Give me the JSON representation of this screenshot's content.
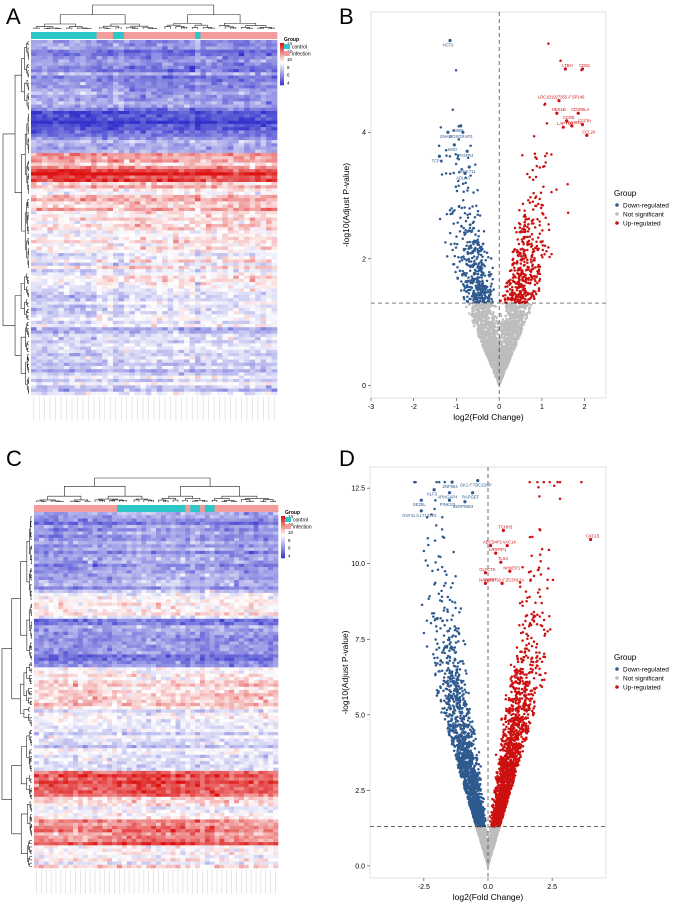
{
  "panels": {
    "a": "A",
    "b": "B",
    "c": "C",
    "d": "D"
  },
  "colors": {
    "control": "#2ec7c7",
    "infection": "#f49b9b",
    "down": "#2f5a8f",
    "ns": "#bdbdbd",
    "up": "#cc1111",
    "heat_low": "#3333cc",
    "heat_mid": "#ffffff",
    "heat_high": "#dd1111"
  },
  "chart_data": [
    {
      "type": "heatmap",
      "id": "A",
      "legend_title": "Group",
      "groups": [
        "control",
        "infection"
      ],
      "color_scale": {
        "min": 4,
        "max": 14,
        "ticks": [
          14,
          12,
          10,
          8,
          6,
          4
        ]
      },
      "column_groups": [
        "control",
        "control",
        "control",
        "control",
        "control",
        "control",
        "control",
        "control",
        "control",
        "control",
        "control",
        "control",
        "infection",
        "infection",
        "infection",
        "control",
        "control",
        "infection",
        "infection",
        "infection",
        "infection",
        "infection",
        "infection",
        "infection",
        "infection",
        "infection",
        "infection",
        "infection",
        "infection",
        "infection",
        "control",
        "infection",
        "infection",
        "infection",
        "infection",
        "infection",
        "infection",
        "infection",
        "infection",
        "infection",
        "infection",
        "infection",
        "infection",
        "infection",
        "infection"
      ]
    },
    {
      "type": "scatter",
      "id": "B",
      "xlabel": "log2(Fold Change)",
      "ylabel": "-log10(Adjust P-value)",
      "xlim": [
        -3,
        2.5
      ],
      "ylim": [
        -0.2,
        5.9
      ],
      "xticks": [
        -3,
        -2,
        -1,
        0,
        1,
        2
      ],
      "yticks": [
        0,
        2,
        4
      ],
      "threshold_y": 1.3,
      "threshold_x": 0,
      "legend_title": "Group",
      "legend": [
        "Down-regulated",
        "Not significant",
        "Up-regulated"
      ],
      "labels_down": [
        {
          "text": "HCT2",
          "x": -1.15,
          "y": 5.45
        },
        {
          "text": "DBP",
          "x": -0.9,
          "y": 4.1
        },
        {
          "text": "SNAI2",
          "x": -1.2,
          "y": 4.0
        },
        {
          "text": "HOXGRAP3",
          "x": -0.85,
          "y": 4.0
        },
        {
          "text": "SMO",
          "x": -1.05,
          "y": 3.8
        },
        {
          "text": "PTGFR4",
          "x": -0.75,
          "y": 3.7
        },
        {
          "text": "TFPI2",
          "x": -1.4,
          "y": 3.62
        },
        {
          "text": "WNKT11",
          "x": -0.7,
          "y": 3.45
        },
        {
          "text": "ADLAA",
          "x": -0.8,
          "y": 3.35
        }
      ],
      "labels_up": [
        {
          "text": "LTBH",
          "x": 1.55,
          "y": 5.0
        },
        {
          "text": "CD52",
          "x": 1.95,
          "y": 5.0
        },
        {
          "text": "LOC101927355 // SP140",
          "x": 1.4,
          "y": 4.5
        },
        {
          "text": "HES1B",
          "x": 1.35,
          "y": 4.3
        },
        {
          "text": "CCR5",
          "x": 1.58,
          "y": 4.18
        },
        {
          "text": "CD300LA",
          "x": 1.85,
          "y": 4.3
        },
        {
          "text": "LAPTM5",
          "x": 1.5,
          "y": 4.08
        },
        {
          "text": "PYHIN1",
          "x": 1.7,
          "y": 4.1
        },
        {
          "text": "FGFRI",
          "x": 1.95,
          "y": 4.12
        },
        {
          "text": "CCL20",
          "x": 2.05,
          "y": 3.95
        }
      ]
    },
    {
      "type": "heatmap",
      "id": "C",
      "legend_title": "Group",
      "groups": [
        "control",
        "infection"
      ],
      "color_scale": {
        "min": 4,
        "max": 14,
        "ticks": [
          14,
          12,
          10,
          8,
          6,
          4
        ]
      },
      "column_groups": [
        "infection",
        "infection",
        "infection",
        "infection",
        "infection",
        "infection",
        "infection",
        "infection",
        "infection",
        "infection",
        "infection",
        "infection",
        "infection",
        "infection",
        "infection",
        "infection",
        "infection",
        "control",
        "control",
        "control",
        "control",
        "control",
        "control",
        "control",
        "control",
        "control",
        "control",
        "control",
        "control",
        "control",
        "control",
        "infection",
        "control",
        "control",
        "infection",
        "control",
        "control",
        "infection",
        "infection",
        "infection",
        "infection",
        "infection",
        "infection",
        "infection",
        "infection",
        "infection",
        "infection",
        "infection",
        "infection",
        "infection"
      ]
    },
    {
      "type": "scatter",
      "id": "D",
      "xlabel": "log2(Fold Change)",
      "ylabel": "-log10(Adjust P-value)",
      "xlim": [
        -4.6,
        4.6
      ],
      "ylim": [
        -0.4,
        13.2
      ],
      "xticks": [
        -2.5,
        0.0,
        2.5
      ],
      "xtick_labels": [
        "-2.5",
        "0.0",
        "2.5"
      ],
      "yticks": [
        0,
        2.5,
        5,
        7.5,
        10,
        12.5
      ],
      "ytick_labels": [
        "0.0",
        "2.5",
        "5.0",
        "7.5",
        "10.0",
        "12.5"
      ],
      "threshold_y": 1.3,
      "threshold_x": 0,
      "legend_title": "Group",
      "legend": [
        "Down-regulated",
        "Not significant",
        "Up-regulated"
      ],
      "labels_down": [
        {
          "text": "ZNF684",
          "x": -1.4,
          "y": 12.7
        },
        {
          "text": "GK1 // TBC1D8P",
          "x": -0.4,
          "y": 12.75
        },
        {
          "text": "KLF3",
          "x": -2.1,
          "y": 12.45
        },
        {
          "text": "ARHGAP4",
          "x": -1.5,
          "y": 12.35
        },
        {
          "text": "RAPGEF",
          "x": -0.6,
          "y": 12.35
        },
        {
          "text": "SEZ6L",
          "x": -2.6,
          "y": 12.1
        },
        {
          "text": "PINK2/3",
          "x": -1.5,
          "y": 12.1
        },
        {
          "text": "SERPINB3",
          "x": -0.9,
          "y": 12.05
        },
        {
          "text": "GVF11 /LLT1/GV3",
          "x": -2.6,
          "y": 11.75
        }
      ],
      "labels_up": [
        {
          "text": "TCHH3",
          "x": 0.6,
          "y": 11.1
        },
        {
          "text": "CXCL5",
          "x": 4.0,
          "y": 10.8
        },
        {
          "text": "ABCD4P1",
          "x": 0.1,
          "y": 10.6
        },
        {
          "text": "VAC14",
          "x": 0.75,
          "y": 10.6
        },
        {
          "text": "LRRFIP1",
          "x": 0.3,
          "y": 10.35
        },
        {
          "text": "TLX4",
          "x": 0.5,
          "y": 10.05
        },
        {
          "text": "GLYCTK",
          "x": -0.1,
          "y": 9.7
        },
        {
          "text": "NHKEP1",
          "x": 0.85,
          "y": 9.75
        },
        {
          "text": "NAFARP",
          "x": -0.1,
          "y": 9.35
        },
        {
          "text": "MIR6792 // ZC3H12A",
          "x": 0.55,
          "y": 9.35
        }
      ]
    }
  ]
}
